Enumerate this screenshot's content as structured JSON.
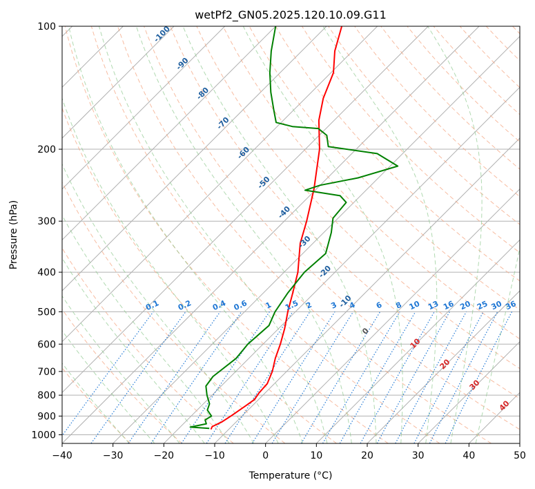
{
  "chart_data": {
    "type": "line",
    "title": "wetPf2_GN05.2025.120.10.09.G11",
    "xlabel": "Temperature (°C)",
    "ylabel": "Pressure (hPa)",
    "xlim": [
      -40,
      50
    ],
    "ylim": [
      1050,
      100
    ],
    "y_scale": "log",
    "grid": true,
    "x_ticks": [
      "−40",
      "−30",
      "−20",
      "−10",
      "0",
      "10",
      "20",
      "30",
      "40",
      "50"
    ],
    "y_ticks": [
      "100",
      "200",
      "300",
      "400",
      "500",
      "600",
      "700",
      "800",
      "900",
      "1000"
    ],
    "colors": {
      "temperature": "#ff0000",
      "dewpoint": "#008000",
      "dry_adiabat": "#f4a582",
      "moist_adiabat": "#8fc98f",
      "mixing_ratio": "#1f77d4",
      "isotherm": "#b0b0b0",
      "dry_adiabat_label": "#1f5f9f",
      "wet_bulb_label": "#d62728"
    },
    "series": [
      {
        "color": "#ff0000",
        "points": [
          {
            "p": 970,
            "t": -13.5
          },
          {
            "p": 955,
            "t": -13.8
          },
          {
            "p": 930,
            "t": -12.8
          },
          {
            "p": 900,
            "t": -12.2
          },
          {
            "p": 850,
            "t": -11.3
          },
          {
            "p": 820,
            "t": -10.8
          },
          {
            "p": 790,
            "t": -11.2
          },
          {
            "p": 750,
            "t": -11.4
          },
          {
            "p": 700,
            "t": -12.8
          },
          {
            "p": 650,
            "t": -14.8
          },
          {
            "p": 600,
            "t": -16.6
          },
          {
            "p": 550,
            "t": -18.8
          },
          {
            "p": 500,
            "t": -21.5
          },
          {
            "p": 450,
            "t": -24.2
          },
          {
            "p": 400,
            "t": -27.3
          },
          {
            "p": 370,
            "t": -29.8
          },
          {
            "p": 340,
            "t": -32.5
          },
          {
            "p": 300,
            "t": -35.6
          },
          {
            "p": 250,
            "t": -40.5
          },
          {
            "p": 200,
            "t": -47.2
          },
          {
            "p": 170,
            "t": -53.0
          },
          {
            "p": 150,
            "t": -56.5
          },
          {
            "p": 130,
            "t": -59.5
          },
          {
            "p": 115,
            "t": -63.5
          },
          {
            "p": 100,
            "t": -67.0
          }
        ]
      },
      {
        "color": "#008000",
        "points": [
          {
            "p": 965,
            "t": -14.0
          },
          {
            "p": 958,
            "t": -18.0
          },
          {
            "p": 940,
            "t": -15.5
          },
          {
            "p": 920,
            "t": -16.5
          },
          {
            "p": 900,
            "t": -16.0
          },
          {
            "p": 870,
            "t": -18.0
          },
          {
            "p": 840,
            "t": -18.8
          },
          {
            "p": 800,
            "t": -21.0
          },
          {
            "p": 760,
            "t": -23.0
          },
          {
            "p": 720,
            "t": -23.5
          },
          {
            "p": 650,
            "t": -22.5
          },
          {
            "p": 600,
            "t": -23.0
          },
          {
            "p": 540,
            "t": -22.5
          },
          {
            "p": 500,
            "t": -24.0
          },
          {
            "p": 450,
            "t": -25.2
          },
          {
            "p": 400,
            "t": -26.0
          },
          {
            "p": 360,
            "t": -25.5
          },
          {
            "p": 320,
            "t": -28.5
          },
          {
            "p": 295,
            "t": -31.0
          },
          {
            "p": 270,
            "t": -31.5
          },
          {
            "p": 260,
            "t": -34.0
          },
          {
            "p": 252,
            "t": -42.0
          },
          {
            "p": 245,
            "t": -40.0
          },
          {
            "p": 235,
            "t": -34.0
          },
          {
            "p": 220,
            "t": -28.5
          },
          {
            "p": 205,
            "t": -35.0
          },
          {
            "p": 197,
            "t": -46.0
          },
          {
            "p": 185,
            "t": -48.5
          },
          {
            "p": 178,
            "t": -51.5
          },
          {
            "p": 176,
            "t": -57.0
          },
          {
            "p": 172,
            "t": -61.0
          },
          {
            "p": 160,
            "t": -64.0
          },
          {
            "p": 145,
            "t": -68.0
          },
          {
            "p": 130,
            "t": -72.0
          },
          {
            "p": 115,
            "t": -76.0
          },
          {
            "p": 100,
            "t": -80.0
          }
        ]
      }
    ],
    "dry_adiabat_labels": [
      "-100",
      "-90",
      "-80",
      "-70",
      "-60",
      "-50",
      "-40",
      "-30",
      "-20",
      "-10",
      "0"
    ],
    "mixing_ratio_labels": [
      "0.1",
      "0.2",
      "0.4",
      "0.6",
      "1",
      "1.5",
      "2",
      "3",
      "4",
      "6",
      "8",
      "10",
      "13",
      "16",
      "20",
      "25",
      "30",
      "36"
    ],
    "wet_bulb_labels": [
      "10",
      "20",
      "30",
      "40"
    ]
  }
}
